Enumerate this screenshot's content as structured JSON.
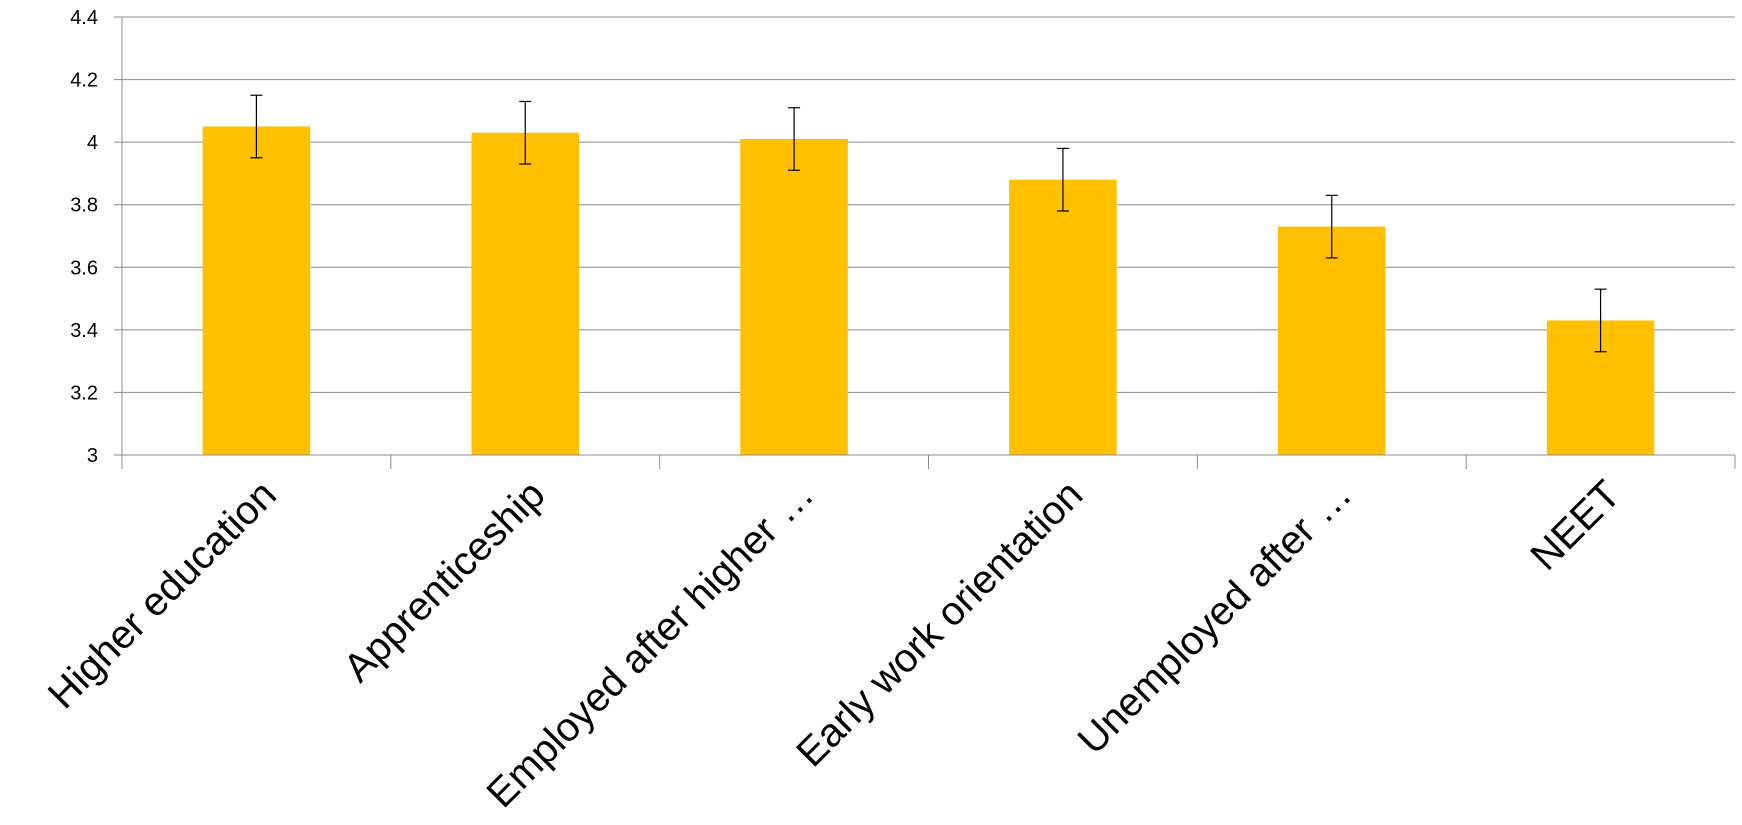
{
  "chart_data": {
    "type": "bar",
    "categories": [
      "Higher education",
      "Apprenticeship",
      "Employed after higher …",
      "Early work orientation",
      "Unemployed after …",
      "NEET"
    ],
    "values": [
      4.05,
      4.03,
      4.01,
      3.88,
      3.73,
      3.43
    ],
    "error": [
      0.1,
      0.1,
      0.1,
      0.1,
      0.1,
      0.1
    ],
    "ylim": [
      3,
      4.4
    ],
    "yticks": [
      3,
      3.2,
      3.4,
      3.6,
      3.8,
      4,
      4.2,
      4.4
    ],
    "ytick_labels": [
      "3",
      "3.2",
      "3.4",
      "3.6",
      "3.8",
      "4",
      "4.2",
      "4.4"
    ],
    "grid": true,
    "bar_color": "#ffc000",
    "title": "",
    "xlabel": "",
    "ylabel": ""
  }
}
